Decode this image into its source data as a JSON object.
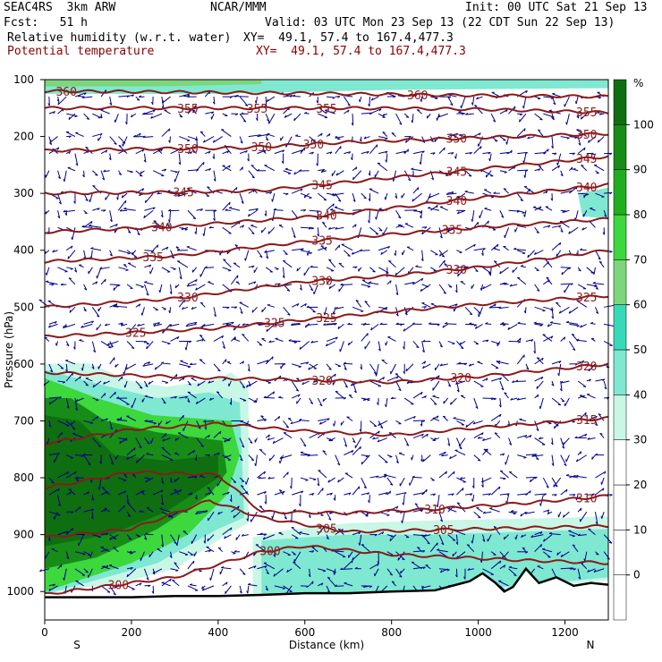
{
  "header": {
    "model": "SEAC4RS  3km ARW",
    "org": "NCAR/MMM",
    "init": "Init: 00 UTC Sat 21 Sep 13",
    "fcst": "Fcst:   51 h",
    "valid": "Valid: 03 UTC Mon 23 Sep 13 (22 CDT Sun 22 Sep 13)",
    "field1_name": "Relative humidity (w.r.t. water)",
    "field1_xy": "XY=  49.1, 57.4 to 167.4,477.3",
    "field2_name": "Potential temperature",
    "field2_xy": "XY=  49.1, 57.4 to 167.4,477.3"
  },
  "colors": {
    "theta": "#8b1a1a",
    "wind": "#00008b",
    "terrain": "#000000",
    "rh_scale": [
      "#ffffff",
      "#ffffff",
      "#ffffff",
      "#ffffff",
      "#c8f7e6",
      "#7fe8d0",
      "#38d9b8",
      "#7cd67c",
      "#3cd83c",
      "#1fae1f",
      "#178c17",
      "#0f6e0f"
    ]
  },
  "chart_data": {
    "type": "cross-section",
    "xlabel": "Distance (km)",
    "ylabel": "Pressure (hPa)",
    "x_ticks": [
      0,
      200,
      400,
      600,
      800,
      1000,
      1200
    ],
    "xlim": [
      0,
      1300
    ],
    "y_ticks": [
      100,
      200,
      300,
      400,
      500,
      600,
      700,
      800,
      900,
      1000
    ],
    "ylim": [
      100,
      1050
    ],
    "x_end_labels": {
      "left": "S",
      "right": "N"
    },
    "colorbar": {
      "unit": "%",
      "levels": [
        -10,
        0,
        10,
        20,
        30,
        40,
        50,
        60,
        70,
        80,
        90,
        100,
        110
      ],
      "labels": [
        0,
        10,
        20,
        30,
        40,
        50,
        60,
        70,
        80,
        90,
        100
      ]
    },
    "rh_regions": [
      {
        "rh": 40,
        "points": [
          [
            0,
            100
          ],
          [
            1300,
            100
          ],
          [
            1300,
            115
          ],
          [
            800,
            118
          ],
          [
            400,
            125
          ],
          [
            0,
            125
          ]
        ]
      },
      {
        "rh": 60,
        "points": [
          [
            0,
            100
          ],
          [
            500,
            100
          ],
          [
            500,
            108
          ],
          [
            250,
            112
          ],
          [
            0,
            112
          ]
        ]
      },
      {
        "rh": 40,
        "points": [
          [
            1230,
            300
          ],
          [
            1300,
            290
          ],
          [
            1300,
            345
          ],
          [
            1240,
            340
          ]
        ]
      },
      {
        "rh": 30,
        "points": [
          [
            0,
            600
          ],
          [
            100,
            598
          ],
          [
            200,
            630
          ],
          [
            280,
            640
          ],
          [
            390,
            628
          ],
          [
            430,
            615
          ],
          [
            470,
            640
          ],
          [
            470,
            880
          ],
          [
            420,
            900
          ],
          [
            300,
            960
          ],
          [
            200,
            980
          ],
          [
            0,
            1005
          ]
        ]
      },
      {
        "rh": 40,
        "points": [
          [
            0,
            610
          ],
          [
            150,
            640
          ],
          [
            260,
            660
          ],
          [
            380,
            650
          ],
          [
            450,
            668
          ],
          [
            460,
            870
          ],
          [
            400,
            890
          ],
          [
            260,
            950
          ],
          [
            0,
            1005
          ]
        ]
      },
      {
        "rh": 70,
        "points": [
          [
            0,
            625
          ],
          [
            120,
            660
          ],
          [
            250,
            690
          ],
          [
            430,
            700
          ],
          [
            450,
            760
          ],
          [
            420,
            830
          ],
          [
            330,
            900
          ],
          [
            200,
            950
          ],
          [
            0,
            1000
          ]
        ]
      },
      {
        "rh": 90,
        "points": [
          [
            0,
            660
          ],
          [
            60,
            660
          ],
          [
            140,
            700
          ],
          [
            260,
            720
          ],
          [
            410,
            735
          ],
          [
            420,
            790
          ],
          [
            380,
            830
          ],
          [
            260,
            890
          ],
          [
            120,
            940
          ],
          [
            0,
            960
          ]
        ]
      },
      {
        "rh": 100,
        "points": [
          [
            0,
            690
          ],
          [
            80,
            700
          ],
          [
            160,
            760
          ],
          [
            280,
            770
          ],
          [
            400,
            760
          ],
          [
            400,
            800
          ],
          [
            280,
            860
          ],
          [
            150,
            900
          ],
          [
            0,
            920
          ]
        ]
      },
      {
        "rh": 30,
        "points": [
          [
            480,
            905
          ],
          [
            560,
            892
          ],
          [
            700,
            880
          ],
          [
            900,
            875
          ],
          [
            1100,
            872
          ],
          [
            1300,
            868
          ],
          [
            1300,
            980
          ],
          [
            1100,
            995
          ],
          [
            900,
            1000
          ],
          [
            700,
            1005
          ],
          [
            480,
            1005
          ]
        ]
      },
      {
        "rh": 40,
        "points": [
          [
            500,
            910
          ],
          [
            700,
            900
          ],
          [
            900,
            900
          ],
          [
            1100,
            895
          ],
          [
            1300,
            890
          ],
          [
            1300,
            975
          ],
          [
            1100,
            990
          ],
          [
            900,
            998
          ],
          [
            700,
            1003
          ],
          [
            500,
            1005
          ]
        ]
      }
    ],
    "theta_contours": [
      {
        "label": 360,
        "x": [
          0,
          300,
          600,
          900,
          1300
        ],
        "y": [
          120,
          122,
          124,
          127,
          130
        ],
        "label_at": [
          [
            50,
            360
          ],
          [
            860,
            360
          ]
        ]
      },
      {
        "label": 355,
        "x": [
          0,
          200,
          450,
          700,
          1000,
          1300
        ],
        "y": [
          150,
          150,
          150,
          150,
          152,
          158
        ],
        "label_at": [
          [
            330,
            355
          ],
          [
            490,
            355
          ],
          [
            650,
            355
          ],
          [
            1250,
            355
          ]
        ]
      },
      {
        "label": 350,
        "x": [
          0,
          200,
          450,
          700,
          1000,
          1300
        ],
        "y": [
          225,
          222,
          220,
          210,
          202,
          195
        ],
        "label_at": [
          [
            330,
            350
          ],
          [
            500,
            350
          ],
          [
            620,
            350
          ],
          [
            950,
            350
          ],
          [
            1250,
            350
          ]
        ]
      },
      {
        "label": 345,
        "x": [
          0,
          300,
          500,
          700,
          900,
          1100,
          1300
        ],
        "y": [
          300,
          298,
          295,
          280,
          265,
          250,
          235
        ],
        "label_at": [
          [
            320,
            345
          ],
          [
            640,
            345
          ],
          [
            950,
            345
          ],
          [
            1250,
            345
          ]
        ]
      },
      {
        "label": 340,
        "x": [
          0,
          300,
          600,
          800,
          1000,
          1300
        ],
        "y": [
          368,
          358,
          342,
          326,
          308,
          285
        ],
        "label_at": [
          [
            270,
            340
          ],
          [
            650,
            340
          ],
          [
            950,
            340
          ],
          [
            1250,
            340
          ]
        ]
      },
      {
        "label": 335,
        "x": [
          0,
          300,
          600,
          800,
          1000,
          1300
        ],
        "y": [
          420,
          410,
          385,
          372,
          360,
          345
        ],
        "label_at": [
          [
            250,
            335
          ],
          [
            640,
            335
          ],
          [
            940,
            335
          ]
        ]
      },
      {
        "label": 330,
        "x": [
          0,
          300,
          600,
          800,
          1000,
          1300
        ],
        "y": [
          500,
          485,
          455,
          445,
          430,
          400
        ],
        "label_at": [
          [
            330,
            330
          ],
          [
            640,
            330
          ],
          [
            950,
            330
          ]
        ]
      },
      {
        "label": 325,
        "x": [
          0,
          200,
          400,
          600,
          800,
          1000,
          1300
        ],
        "y": [
          552,
          545,
          537,
          522,
          508,
          495,
          480
        ],
        "label_at": [
          [
            210,
            325
          ],
          [
            530,
            325
          ],
          [
            650,
            325
          ],
          [
            1250,
            325
          ]
        ]
      },
      {
        "label": 320,
        "x": [
          0,
          200,
          400,
          600,
          800,
          1000,
          1300
        ],
        "y": [
          615,
          620,
          625,
          628,
          632,
          622,
          600
        ],
        "label_at": [
          [
            640,
            320
          ],
          [
            960,
            320
          ],
          [
            1250,
            320
          ]
        ]
      },
      {
        "label": 315,
        "x": [
          0,
          200,
          400,
          600,
          800,
          1000,
          1300
        ],
        "y": [
          740,
          715,
          705,
          718,
          725,
          712,
          695
        ],
        "label_at": [
          [
            1250,
            315
          ]
        ]
      },
      {
        "label": 310,
        "x": [
          0,
          200,
          400,
          500,
          700,
          900,
          1100,
          1300
        ],
        "y": [
          818,
          790,
          795,
          860,
          862,
          855,
          845,
          832
        ],
        "label_at": [
          [
            900,
            310
          ],
          [
            1250,
            310
          ]
        ]
      },
      {
        "label": 305,
        "x": [
          0,
          200,
          380,
          500,
          700,
          1000,
          1300
        ],
        "y": [
          905,
          890,
          840,
          870,
          895,
          890,
          885
        ],
        "label_at": [
          [
            650,
            305
          ],
          [
            920,
            305
          ]
        ]
      },
      {
        "label": 300,
        "x": [
          0,
          300,
          500,
          600,
          800,
          1100,
          1300
        ],
        "y": [
          1005,
          975,
          930,
          920,
          935,
          945,
          950
        ],
        "label_at": [
          [
            520,
            300
          ],
          [
            170,
            300
          ]
        ]
      }
    ],
    "terrain_pressure": {
      "x": [
        0,
        100,
        200,
        300,
        400,
        500,
        600,
        700,
        800,
        900,
        940,
        980,
        1010,
        1040,
        1060,
        1080,
        1110,
        1140,
        1180,
        1220,
        1260,
        1300
      ],
      "p": [
        1010,
        1010,
        1010,
        1008,
        1008,
        1006,
        1003,
        1003,
        1000,
        998,
        990,
        982,
        968,
        985,
        1000,
        992,
        960,
        985,
        975,
        990,
        985,
        988
      ]
    },
    "wind_grid": {
      "x_step": 20,
      "y_levels": [
        130,
        160,
        200,
        230,
        260,
        300,
        330,
        360,
        400,
        430,
        460,
        500,
        530,
        560,
        600,
        630,
        660,
        700,
        730,
        760,
        800,
        830,
        860,
        900,
        930,
        960,
        990
      ]
    }
  }
}
